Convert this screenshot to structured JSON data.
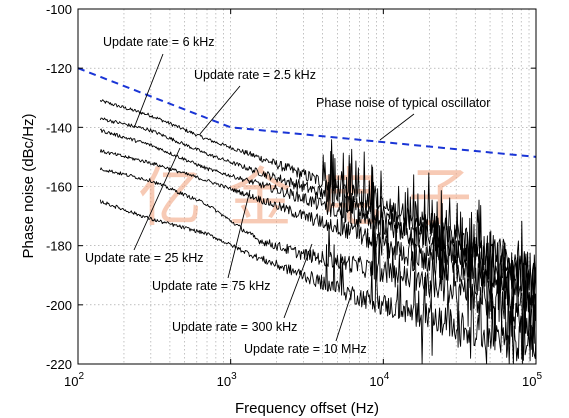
{
  "chart_data": {
    "type": "line",
    "x_scale": "log",
    "xlabel": "Frequency offset (Hz)",
    "ylabel": "Phase noise (dBc/Hz)",
    "xlim": [
      100,
      100000
    ],
    "ylim": [
      -220,
      -100
    ],
    "grid": true,
    "x_ticks": [
      {
        "value": 100,
        "base": "10",
        "exp": "2"
      },
      {
        "value": 1000,
        "base": "10",
        "exp": "3"
      },
      {
        "value": 10000,
        "base": "10",
        "exp": "4"
      },
      {
        "value": 100000,
        "base": "10",
        "exp": "5"
      }
    ],
    "y_ticks": [
      -100,
      -120,
      -140,
      -160,
      -180,
      -200,
      -220
    ],
    "y_tick_labels": [
      "-100",
      "-120",
      "-140",
      "-160",
      "-180",
      "-200",
      "-220"
    ],
    "reference": {
      "name": "Phase noise of typical oscillator",
      "color": "#1a35d6",
      "style": "dashed",
      "x": [
        100,
        1000,
        10000,
        100000
      ],
      "y": [
        -120,
        -140,
        -145,
        -150
      ]
    },
    "series": [
      {
        "name": "Update rate = 6 kHz",
        "x": [
          140,
          300,
          700,
          1500,
          3000,
          6000,
          10000,
          30000,
          100000
        ],
        "y": [
          -131,
          -136,
          -144,
          -150,
          -156,
          -162,
          -167,
          -176,
          -190
        ]
      },
      {
        "name": "Update rate = 2.5 kHz",
        "x": [
          140,
          300,
          700,
          1500,
          3000,
          6000,
          10000,
          30000,
          100000
        ],
        "y": [
          -137,
          -141,
          -149,
          -155,
          -160,
          -166,
          -170,
          -179,
          -193
        ]
      },
      {
        "name": "Update rate = 25 kHz",
        "x": [
          140,
          300,
          700,
          1500,
          3000,
          6000,
          10000,
          30000,
          100000
        ],
        "y": [
          -141,
          -146,
          -154,
          -159,
          -164,
          -170,
          -174,
          -183,
          -197
        ]
      },
      {
        "name": "Update rate = 75 kHz",
        "x": [
          140,
          300,
          700,
          1500,
          3000,
          6000,
          10000,
          30000,
          100000
        ],
        "y": [
          -148,
          -152,
          -158,
          -164,
          -170,
          -175,
          -180,
          -188,
          -201
        ]
      },
      {
        "name": "Update rate = 300 kHz",
        "x": [
          140,
          300,
          700,
          1500,
          3000,
          6000,
          10000,
          30000,
          100000
        ],
        "y": [
          -154,
          -158,
          -166,
          -178,
          -183,
          -186,
          -189,
          -195,
          -205
        ]
      },
      {
        "name": "Update rate = 10 MHz",
        "x": [
          140,
          300,
          700,
          1500,
          3000,
          6000,
          10000,
          30000,
          100000
        ],
        "y": [
          -165,
          -171,
          -176,
          -184,
          -190,
          -196,
          -200,
          -207,
          -214
        ]
      }
    ],
    "annotations": [
      "Update rate = 6 kHz",
      "Update rate = 2.5 kHz",
      "Phase noise of typical oscillator",
      "Update rate = 25 kHz",
      "Update rate = 75 kHz",
      "Update rate = 300 kHz",
      "Update rate = 10 MHz"
    ],
    "watermark": [
      "亿",
      "金",
      "电",
      "子"
    ]
  }
}
